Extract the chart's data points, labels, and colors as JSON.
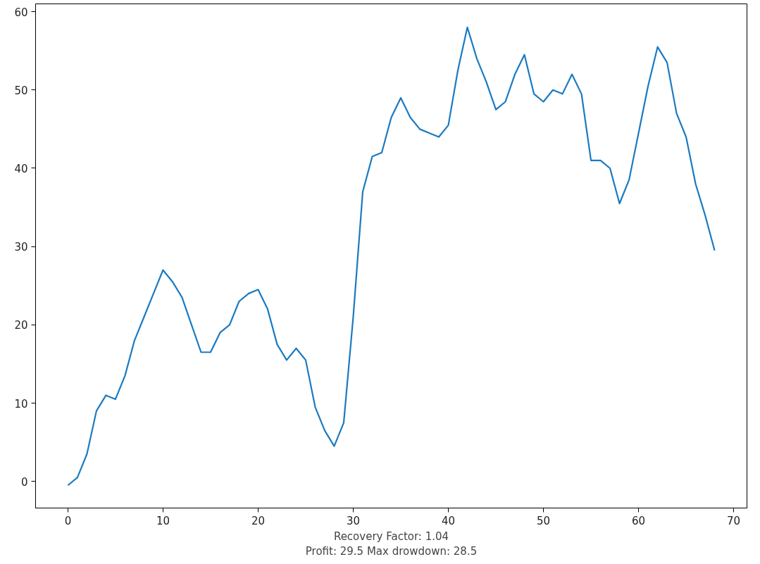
{
  "chart_data": {
    "type": "line",
    "xlabel": "Recovery Factor: 1.04\nProfit: 29.5 Max drowdown: 28.5",
    "x": [
      0,
      1,
      2,
      3,
      4,
      5,
      6,
      7,
      8,
      9,
      10,
      11,
      12,
      13,
      14,
      15,
      16,
      17,
      18,
      19,
      20,
      21,
      22,
      23,
      24,
      25,
      26,
      27,
      28,
      29,
      30,
      31,
      32,
      33,
      34,
      35,
      36,
      37,
      38,
      39,
      40,
      41,
      42,
      43,
      44,
      45,
      46,
      47,
      48,
      49,
      50,
      51,
      52,
      53,
      54,
      55,
      56,
      57,
      58,
      59,
      60,
      61,
      62,
      63,
      64,
      65,
      66,
      67,
      68
    ],
    "series": [
      {
        "color": "#1a7ac2",
        "values": [
          -0.5,
          0.5,
          3.5,
          9,
          11,
          10.5,
          13.5,
          18,
          21,
          24,
          27,
          25.5,
          23.5,
          20,
          16.5,
          16.5,
          19,
          20,
          23,
          24,
          24.5,
          22,
          17.5,
          15.5,
          17,
          15.5,
          9.5,
          6.5,
          4.5,
          7.5,
          21,
          37,
          41.5,
          42,
          46.5,
          49,
          46.5,
          45,
          44.5,
          44,
          45.5,
          52.5,
          58,
          54,
          51,
          47.5,
          48.5,
          52,
          54.5,
          49.5,
          48.5,
          50,
          49.5,
          52,
          49.5,
          41,
          41,
          40,
          35.5,
          38.5,
          44.5,
          50.5,
          55.5,
          53.5,
          47,
          44,
          38,
          34,
          29.5
        ]
      }
    ],
    "xlim": [
      -3.4,
      71.4
    ],
    "ylim": [
      -3.4,
      61.0
    ],
    "xticks": [
      0,
      10,
      20,
      30,
      40,
      50,
      60,
      70
    ],
    "yticks": [
      0,
      10,
      20,
      30,
      40,
      50,
      60
    ],
    "grid": false,
    "marker": "none",
    "line_style": "solid"
  }
}
